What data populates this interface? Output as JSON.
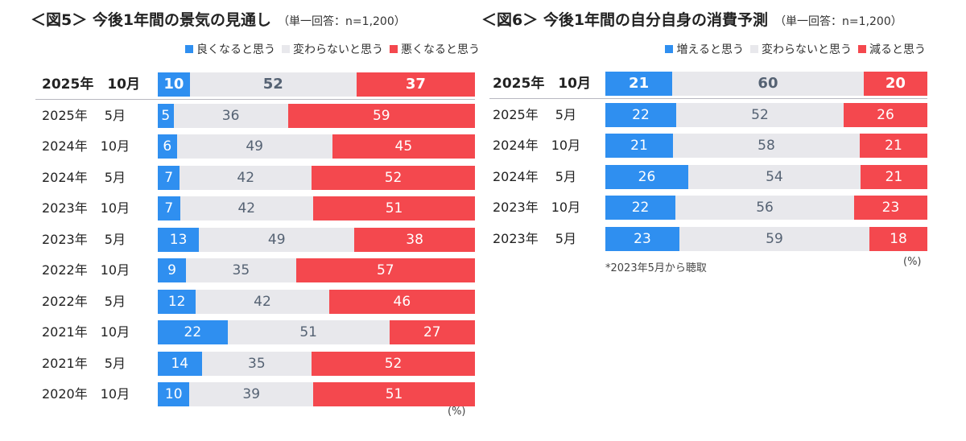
{
  "chart_data": [
    {
      "type": "bar",
      "orientation": "horizontal",
      "stacked": true,
      "title": "＜図5＞ 今後1年間の景気の見通し",
      "subtitle": "（単一回答：n=1,200）",
      "legend_position": "top-right",
      "unit": "(%)",
      "categories": [
        "2025年　10月",
        "2025年　 5月",
        "2024年　10月",
        "2024年　 5月",
        "2023年　10月",
        "2023年　 5月",
        "2022年　10月",
        "2022年　 5月",
        "2021年　10月",
        "2021年　 5月",
        "2020年　10月"
      ],
      "series": [
        {
          "name": "良くなると思う",
          "color": "#2f8ff0",
          "values": [
            10,
            5,
            6,
            7,
            7,
            13,
            9,
            12,
            22,
            14,
            10
          ]
        },
        {
          "name": "変わらないと思う",
          "color": "#e8e8ec",
          "values": [
            52,
            36,
            49,
            42,
            42,
            49,
            35,
            42,
            51,
            35,
            39
          ]
        },
        {
          "name": "悪くなると思う",
          "color": "#f4484e",
          "values": [
            37,
            59,
            45,
            52,
            51,
            38,
            57,
            46,
            27,
            52,
            51
          ]
        }
      ]
    },
    {
      "type": "bar",
      "orientation": "horizontal",
      "stacked": true,
      "title": "＜図6＞ 今後1年間の自分自身の消費予測",
      "subtitle": "（単一回答：n=1,200）",
      "legend_position": "top-right",
      "unit": "(%)",
      "note": "*2023年5月から聴取",
      "categories": [
        "2025年　10月",
        "2025年　 5月",
        "2024年　10月",
        "2024年　 5月",
        "2023年　10月",
        "2023年　 5月"
      ],
      "series": [
        {
          "name": "増えると思う",
          "color": "#2f8ff0",
          "values": [
            21,
            22,
            21,
            26,
            22,
            23
          ]
        },
        {
          "name": "変わらないと思う",
          "color": "#e8e8ec",
          "values": [
            60,
            52,
            58,
            54,
            56,
            59
          ]
        },
        {
          "name": "減ると思う",
          "color": "#f4484e",
          "values": [
            20,
            26,
            21,
            21,
            23,
            18
          ]
        }
      ]
    }
  ]
}
